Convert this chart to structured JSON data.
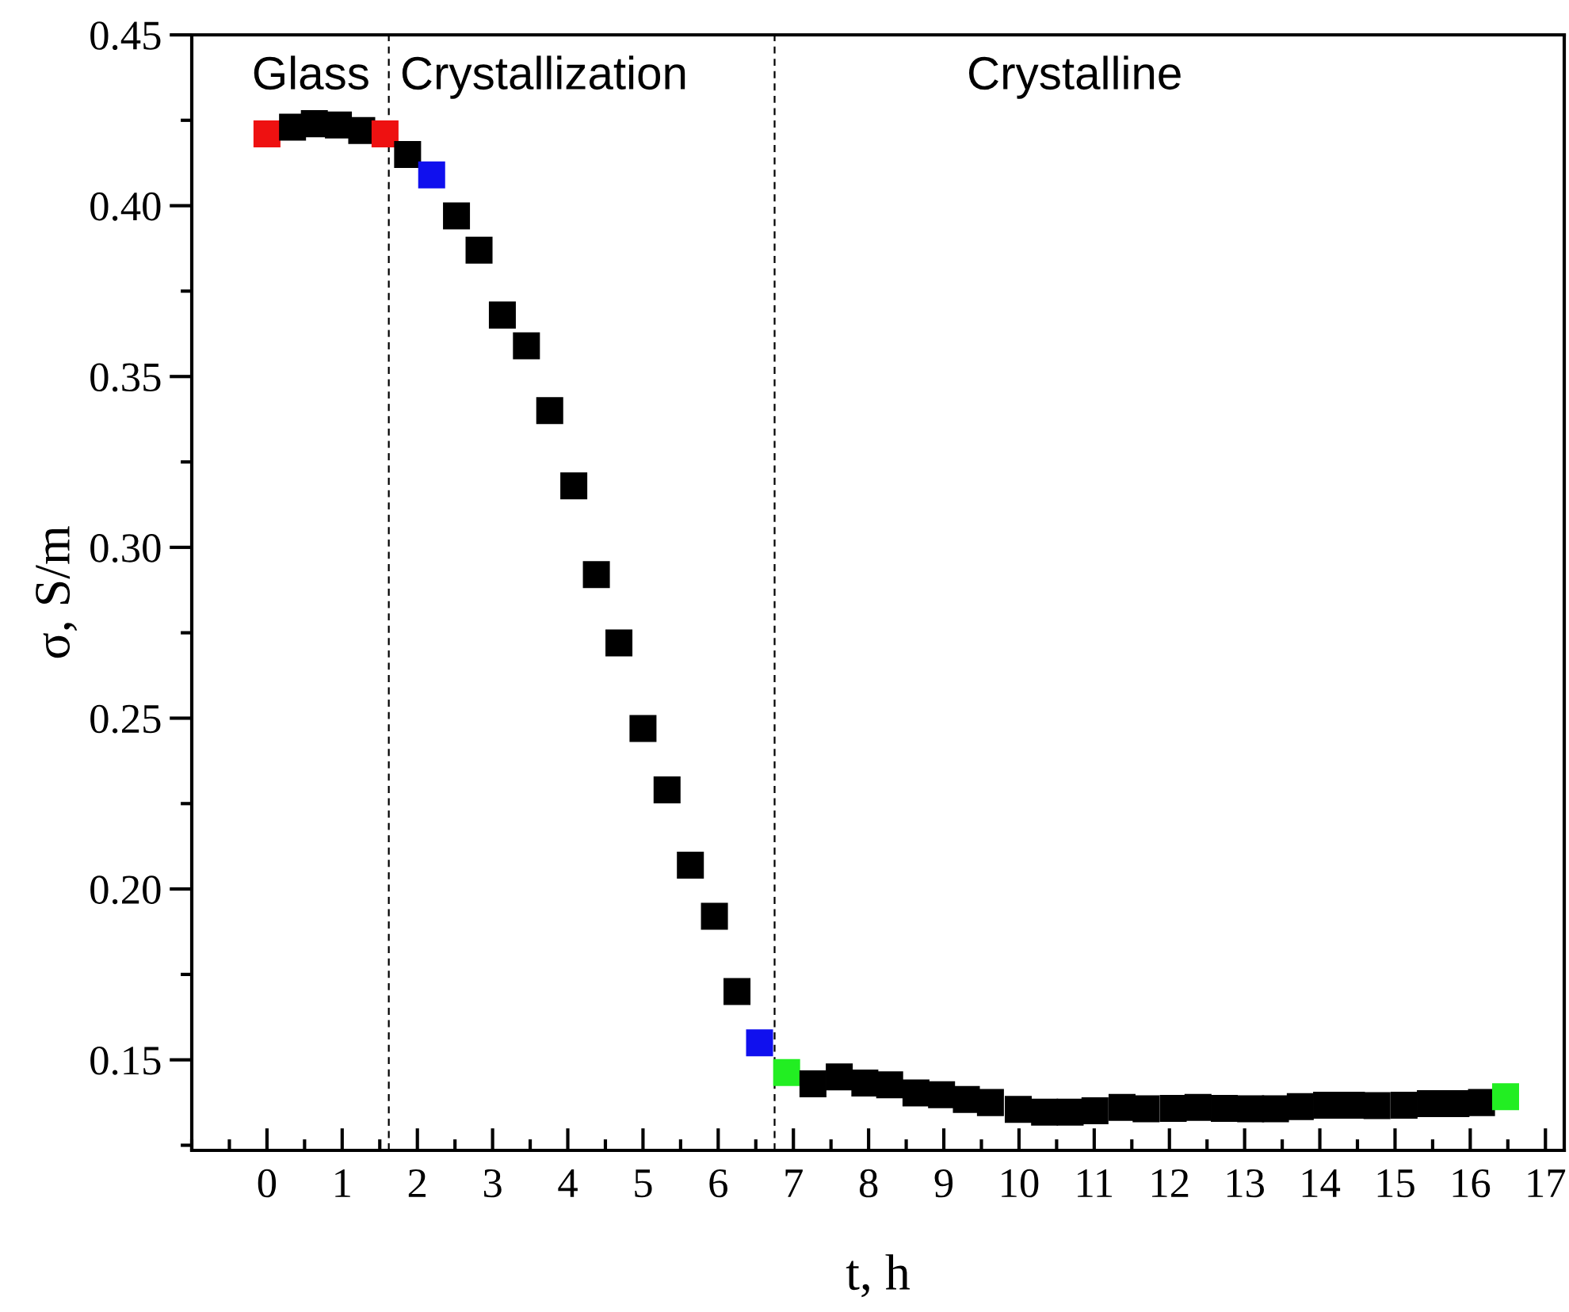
{
  "chart_data": {
    "type": "scatter",
    "xlabel": "t, h",
    "ylabel": "σ, S/m",
    "xlim": [
      -1,
      17.25
    ],
    "ylim": [
      0.1235,
      0.45
    ],
    "xticks": [
      0,
      1,
      2,
      3,
      4,
      5,
      6,
      7,
      8,
      9,
      10,
      11,
      12,
      13,
      14,
      15,
      16,
      17
    ],
    "yticks": [
      {
        "value": 0.15,
        "label": "0.15"
      },
      {
        "value": 0.2,
        "label": "0.20"
      },
      {
        "value": 0.25,
        "label": "0.25"
      },
      {
        "value": 0.3,
        "label": "0.30"
      },
      {
        "value": 0.35,
        "label": "0.35"
      },
      {
        "value": 0.4,
        "label": "0.40"
      },
      {
        "value": 0.45,
        "label": "0.45"
      }
    ],
    "grid": false,
    "legend": false,
    "marker": "square",
    "x": [
      0,
      0.34,
      0.63,
      0.95,
      1.26,
      1.57,
      1.87,
      2.19,
      2.52,
      2.82,
      3.13,
      3.45,
      3.76,
      4.08,
      4.38,
      4.68,
      5.0,
      5.32,
      5.63,
      5.95,
      6.25,
      6.55,
      6.91,
      7.26,
      7.61,
      7.95,
      8.28,
      8.63,
      8.97,
      9.3,
      9.62,
      9.99,
      10.34,
      10.68,
      11.01,
      11.37,
      11.69,
      12.05,
      12.38,
      12.73,
      13.08,
      13.41,
      13.74,
      14.09,
      14.42,
      14.76,
      15.12,
      15.47,
      15.81,
      16.15,
      16.47
    ],
    "values": [
      0.421,
      0.423,
      0.424,
      0.4236,
      0.422,
      0.421,
      0.415,
      0.409,
      0.397,
      0.387,
      0.368,
      0.359,
      0.34,
      0.318,
      0.292,
      0.272,
      0.247,
      0.229,
      0.207,
      0.192,
      0.17,
      0.155,
      0.1463,
      0.143,
      0.145,
      0.1432,
      0.1427,
      0.1403,
      0.1398,
      0.1384,
      0.1375,
      0.1355,
      0.1347,
      0.1347,
      0.1351,
      0.1361,
      0.1357,
      0.1358,
      0.1361,
      0.1358,
      0.1357,
      0.1357,
      0.1363,
      0.1367,
      0.1367,
      0.1366,
      0.1367,
      0.1372,
      0.1372,
      0.1375,
      0.1392
    ],
    "colors": [
      "#ee1111",
      "#000000",
      "#000000",
      "#000000",
      "#000000",
      "#ee1111",
      "#000000",
      "#1010ee",
      "#000000",
      "#000000",
      "#000000",
      "#000000",
      "#000000",
      "#000000",
      "#000000",
      "#000000",
      "#000000",
      "#000000",
      "#000000",
      "#000000",
      "#000000",
      "#1010ee",
      "#22ee22",
      "#000000",
      "#000000",
      "#000000",
      "#000000",
      "#000000",
      "#000000",
      "#000000",
      "#000000",
      "#000000",
      "#000000",
      "#000000",
      "#000000",
      "#000000",
      "#000000",
      "#000000",
      "#000000",
      "#000000",
      "#000000",
      "#000000",
      "#000000",
      "#000000",
      "#000000",
      "#000000",
      "#000000",
      "#000000",
      "#000000",
      "#000000",
      "#22ee22"
    ],
    "ref_lines": [
      {
        "axis": "x",
        "value": 1.62,
        "color": "#000000",
        "line_style": "dashed"
      },
      {
        "axis": "x",
        "value": 6.75,
        "color": "#000000",
        "line_style": "dashed"
      }
    ],
    "annotations": [
      "Glass",
      "Crystallization",
      "Crystalline"
    ]
  }
}
